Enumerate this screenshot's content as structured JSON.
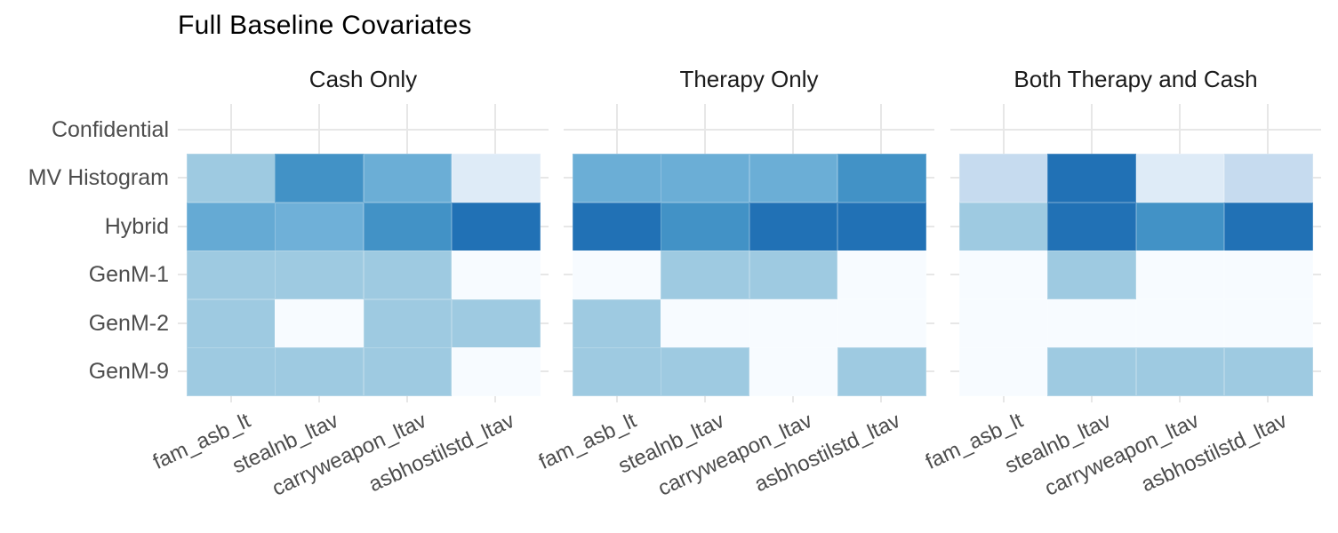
{
  "title": "Full Baseline Covariates",
  "chart_data": {
    "type": "heatmap",
    "title": "Full Baseline Covariates",
    "legend": "none",
    "grid": true,
    "x_categories": [
      "fam_asb_lt",
      "stealnb_ltav",
      "carryweapon_ltav",
      "asbhostilstd_ltav"
    ],
    "y_categories": [
      "Confidential",
      "MV Histogram",
      "Hybrid",
      "GenM-1",
      "GenM-2",
      "GenM-9"
    ],
    "empty_y_rows": [
      "Confidential"
    ],
    "palette": {
      "near_white": "#f7fbff",
      "very_pale_blue": "#deebf7",
      "pale_blue": "#c6dbef",
      "light_blue": "#9ecae1",
      "medium_blue": "#6baed6",
      "medium_dark_blue": "#4292c6",
      "dark_blue": "#2171b5"
    },
    "facets": [
      {
        "label": "Cash Only",
        "cells": [
          null,
          [
            "#9ecae1",
            "#4292c6",
            "#6baed6",
            "#deebf7"
          ],
          [
            "#65aad4",
            "#6fb0d8",
            "#4292c6",
            "#2171b5"
          ],
          [
            "#9ecae1",
            "#9ecae1",
            "#9ecae1",
            "#f7fbff"
          ],
          [
            "#9ecae1",
            "#f7fbff",
            "#9ecae1",
            "#9ecae1"
          ],
          [
            "#9ecae1",
            "#9ecae1",
            "#9ecae1",
            "#f7fbff"
          ]
        ]
      },
      {
        "label": "Therapy Only",
        "cells": [
          null,
          [
            "#6baed6",
            "#6baed6",
            "#6baed6",
            "#4292c6"
          ],
          [
            "#2171b5",
            "#4292c6",
            "#2171b5",
            "#2171b5"
          ],
          [
            "#f7fbff",
            "#9ecae1",
            "#9ecae1",
            "#f7fbff"
          ],
          [
            "#9ecae1",
            "#f7fbff",
            "#f7fbff",
            "#f7fbff"
          ],
          [
            "#9ecae1",
            "#9ecae1",
            "#f7fbff",
            "#9ecae1"
          ]
        ]
      },
      {
        "label": "Both Therapy and Cash",
        "cells": [
          null,
          [
            "#c6dbef",
            "#2171b5",
            "#deebf7",
            "#c6dbef"
          ],
          [
            "#9ecae1",
            "#2171b5",
            "#4292c6",
            "#2171b5"
          ],
          [
            "#f7fbff",
            "#9ecae1",
            "#f7fbff",
            "#f7fbff"
          ],
          [
            "#f7fbff",
            "#f7fbff",
            "#f7fbff",
            "#f7fbff"
          ],
          [
            "#f7fbff",
            "#9ecae1",
            "#9ecae1",
            "#9ecae1"
          ]
        ]
      }
    ],
    "style_colors": {
      "gridline": "#e7e7e7",
      "axis_text": "#4d4d4d",
      "facet_title_text": "#1a1a1a",
      "title_text": "#000000",
      "background": "#ffffff"
    }
  }
}
